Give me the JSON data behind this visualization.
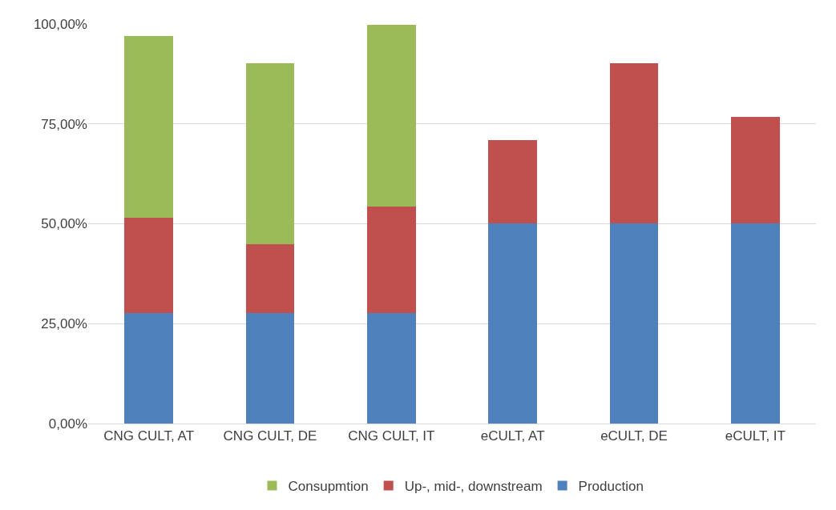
{
  "chart_data": {
    "type": "bar",
    "stacked": true,
    "categories": [
      "CNG CULT, AT",
      "CNG CULT, DE",
      "CNG CULT, IT",
      "eCULT, AT",
      "eCULT, DE",
      "eCULT, IT"
    ],
    "series": [
      {
        "name": "Production",
        "color": "#4f81bd",
        "values": [
          27.7,
          27.7,
          27.7,
          50.2,
          50.2,
          50.2
        ]
      },
      {
        "name": "Up-, mid-, downstream",
        "color": "#c0504d",
        "values": [
          23.8,
          17.1,
          26.7,
          20.8,
          40.0,
          26.5
        ]
      },
      {
        "name": "Consupmtion",
        "color": "#9bbb59",
        "values": [
          45.4,
          45.4,
          45.4,
          null,
          null,
          null
        ]
      }
    ],
    "ylim": [
      0,
      100
    ],
    "yticks": [
      {
        "value": 0,
        "label": "0,00%"
      },
      {
        "value": 25,
        "label": "25,00%"
      },
      {
        "value": 50,
        "label": "50,00%"
      },
      {
        "value": 75,
        "label": "75,00%"
      },
      {
        "value": 100,
        "label": "100,00%"
      }
    ],
    "grid": "y",
    "legend": "bottom"
  }
}
